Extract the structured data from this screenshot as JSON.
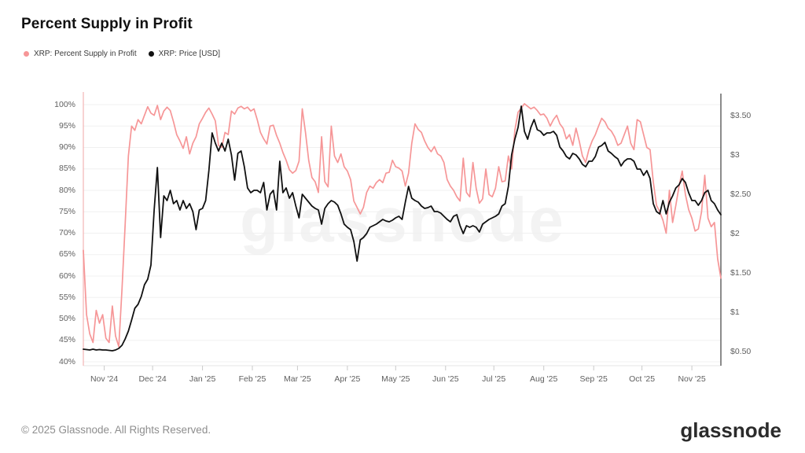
{
  "watermark": "glassnode",
  "footer": {
    "copyright": "© 2025 Glassnode. All Rights Reserved.",
    "logo_text": "glassnode"
  },
  "colors": {
    "background": "#ffffff",
    "grid": "#f0f0f0",
    "axis_text": "#5f5f5f",
    "plot_left_border": "#f3b9b9",
    "plot_right_border": "#4d4d4d",
    "axis_line": "#e6e6e6",
    "tick": "#c9c9c9",
    "supply_series": "#f69697",
    "price_series": "#111111",
    "title_text": "#111111",
    "footer_text": "#8e8e8e"
  },
  "chart_data": {
    "type": "line",
    "title": "Percent Supply in Profit",
    "legend_position": "top-left",
    "watermark": "glassnode",
    "x_axis": {
      "kind": "time",
      "start": "2024-10-19",
      "end": "2025-11-19",
      "total_days": 396,
      "tick_days": [
        13,
        43,
        74,
        105,
        133,
        164,
        194,
        225,
        255,
        286,
        317,
        347,
        378
      ],
      "tick_labels": [
        "Nov '24",
        "Dec '24",
        "Jan '25",
        "Feb '25",
        "Mar '25",
        "Apr '25",
        "May '25",
        "Jun '25",
        "Jul '25",
        "Aug '25",
        "Sep '25",
        "Oct '25",
        "Nov '25"
      ]
    },
    "y_left": {
      "label": "Percent Supply in Profit",
      "unit": "%",
      "tick_values": [
        100,
        95,
        90,
        85,
        80,
        75,
        70,
        65,
        60,
        55,
        50,
        45,
        40
      ],
      "tick_labels": [
        "100%",
        "95%",
        "90%",
        "85%",
        "80%",
        "75%",
        "70%",
        "65%",
        "60%",
        "55%",
        "50%",
        "45%",
        "40%"
      ],
      "range": [
        39,
        102.8
      ],
      "grid": true
    },
    "y_right": {
      "label": "Price USD",
      "unit": "USD",
      "tick_values": [
        3.5,
        3,
        2.5,
        2,
        1.5,
        1,
        0.5
      ],
      "tick_labels": [
        "$3.50",
        "$3",
        "$2.50",
        "$2",
        "$1.50",
        "$1",
        "$0.50"
      ],
      "range": [
        0.32,
        3.79
      ],
      "grid": false
    },
    "series": [
      {
        "name": "XRP: Percent Supply in Profit",
        "axis": "left",
        "unit": "%",
        "color": "#f69697",
        "stroke_width": 1.7,
        "sample_day_step": 2,
        "values": [
          66,
          51,
          46.5,
          44.5,
          52,
          49,
          51,
          45.5,
          44.5,
          53,
          46,
          43.5,
          57,
          72,
          88,
          95,
          94,
          96.5,
          95.5,
          97.5,
          99.5,
          98,
          97.5,
          99.8,
          96.5,
          98.5,
          99.4,
          98.6,
          96,
          93,
          91.5,
          89.8,
          92.5,
          88.5,
          91,
          92.5,
          95.5,
          96.8,
          98.2,
          99.2,
          97.8,
          96.2,
          90.5,
          90,
          93.5,
          93,
          98.5,
          97.8,
          99.2,
          99.6,
          99,
          99.4,
          98.5,
          99,
          96.5,
          93.5,
          92,
          90.8,
          95,
          95.2,
          92.8,
          91,
          88.8,
          87,
          84.8,
          84,
          84.6,
          86.8,
          99,
          93.5,
          87,
          83,
          82,
          79.5,
          92.5,
          82,
          80.8,
          95,
          88,
          86.5,
          88.5,
          85.5,
          84.5,
          82.5,
          77.5,
          76,
          74.5,
          76,
          79.5,
          81,
          80.5,
          81.8,
          82.5,
          81.8,
          84,
          84.2,
          87,
          85.5,
          85.2,
          84.5,
          81,
          84,
          91,
          95.5,
          94.2,
          93.5,
          91.5,
          90,
          89,
          90.2,
          88.5,
          88,
          86.5,
          82.5,
          81,
          80,
          78.5,
          77.5,
          87.5,
          79.5,
          78.5,
          86.5,
          80.5,
          77,
          78,
          85,
          79,
          78.5,
          80.5,
          85.5,
          82,
          82.2,
          88,
          85,
          94,
          98.2,
          99.2,
          100.2,
          99.6,
          99,
          99.4,
          98.6,
          97.6,
          97.8,
          96.8,
          95,
          96.5,
          97.5,
          95.5,
          94.5,
          92,
          93,
          90.5,
          94.5,
          91.5,
          88,
          86.5,
          89.5,
          91.5,
          93,
          95,
          96.8,
          96,
          94.5,
          93.8,
          92.5,
          90.5,
          91,
          93,
          95,
          91,
          89.5,
          96.5,
          96,
          93,
          90,
          89.5,
          82,
          76.5,
          75,
          73,
          70,
          80,
          72.5,
          76.5,
          81,
          84.5,
          79,
          75.5,
          73.5,
          70.5,
          71,
          75,
          83.5,
          73.5,
          71.5,
          72.5,
          64,
          59.5
        ]
      },
      {
        "name": "XRP: Price [USD]",
        "axis": "right",
        "unit": "USD",
        "color": "#111111",
        "stroke_width": 1.8,
        "sample_day_step": 2,
        "values": [
          0.53,
          0.525,
          0.52,
          0.53,
          0.52,
          0.525,
          0.52,
          0.52,
          0.515,
          0.51,
          0.52,
          0.54,
          0.58,
          0.66,
          0.76,
          0.9,
          1.05,
          1.1,
          1.2,
          1.35,
          1.42,
          1.6,
          2.3,
          2.84,
          1.95,
          2.48,
          2.42,
          2.55,
          2.38,
          2.42,
          2.3,
          2.42,
          2.32,
          2.38,
          2.28,
          2.05,
          2.3,
          2.32,
          2.42,
          2.8,
          3.28,
          3.15,
          3.05,
          3.15,
          3.05,
          3.2,
          3.0,
          2.68,
          3.02,
          3.05,
          2.85,
          2.58,
          2.52,
          2.55,
          2.55,
          2.52,
          2.65,
          2.3,
          2.5,
          2.55,
          2.3,
          2.92,
          2.52,
          2.58,
          2.45,
          2.52,
          2.35,
          2.2,
          2.5,
          2.45,
          2.4,
          2.35,
          2.32,
          2.3,
          2.12,
          2.32,
          2.38,
          2.42,
          2.4,
          2.36,
          2.25,
          2.12,
          2.08,
          2.05,
          1.9,
          1.65,
          1.92,
          1.95,
          2.0,
          2.08,
          2.1,
          2.12,
          2.15,
          2.18,
          2.16,
          2.15,
          2.17,
          2.2,
          2.22,
          2.18,
          2.4,
          2.6,
          2.45,
          2.42,
          2.4,
          2.35,
          2.32,
          2.33,
          2.35,
          2.28,
          2.28,
          2.26,
          2.22,
          2.18,
          2.15,
          2.22,
          2.24,
          2.1,
          2.0,
          2.1,
          2.08,
          2.1,
          2.08,
          2.02,
          2.12,
          2.15,
          2.18,
          2.2,
          2.22,
          2.25,
          2.35,
          2.38,
          2.6,
          3.0,
          3.2,
          3.35,
          3.62,
          3.3,
          3.2,
          3.35,
          3.45,
          3.32,
          3.3,
          3.25,
          3.28,
          3.28,
          3.3,
          3.25,
          3.1,
          3.05,
          2.98,
          2.95,
          3.02,
          3.0,
          2.95,
          2.88,
          2.85,
          2.92,
          2.92,
          2.98,
          3.1,
          3.12,
          3.16,
          3.05,
          3.02,
          2.98,
          2.95,
          2.86,
          2.92,
          2.95,
          2.95,
          2.92,
          2.82,
          2.82,
          2.74,
          2.8,
          2.7,
          2.38,
          2.28,
          2.25,
          2.42,
          2.25,
          2.4,
          2.48,
          2.58,
          2.62,
          2.7,
          2.65,
          2.52,
          2.42,
          2.42,
          2.36,
          2.42,
          2.52,
          2.55,
          2.42,
          2.38,
          2.3,
          2.24
        ]
      }
    ]
  }
}
